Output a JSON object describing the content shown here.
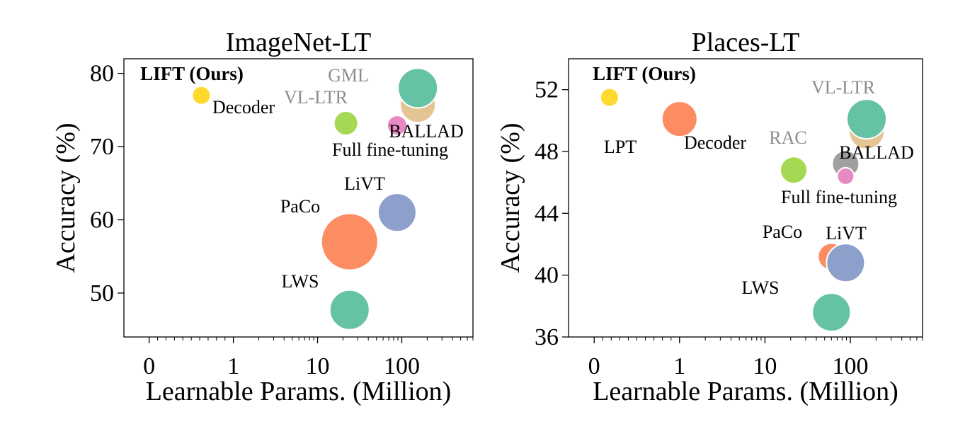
{
  "chart_data": [
    {
      "type": "scatter",
      "title": "ImageNet-LT",
      "xlabel": "Learnable Params. (Million)",
      "ylabel": "Accuracy (%)",
      "xscale": "symlog",
      "xlim": [
        -0.3,
        700
      ],
      "ylim": [
        44,
        82
      ],
      "xticks": [
        0,
        1,
        10,
        100
      ],
      "xtick_labels": [
        "0",
        "1",
        "10",
        "100"
      ],
      "yticks": [
        50,
        60,
        70,
        80
      ],
      "ytick_labels": [
        "50",
        "60",
        "70",
        "80"
      ],
      "grid": false,
      "points": [
        {
          "name": "LIFT (Ours)",
          "x": 0.62,
          "y": 77.0,
          "size": 13,
          "color": "#ffd92f",
          "label_color": "#000000",
          "bold": true
        },
        {
          "name": "Decoder",
          "x": 21.7,
          "y": 73.2,
          "size": 17,
          "color": "#a6d854",
          "label_color": "#000000",
          "bold": false
        },
        {
          "name": "GML",
          "x": 155,
          "y": 76.5,
          "size": 27,
          "color": "#a0a0a0",
          "label_color": "#8c8c8c",
          "bold": false
        },
        {
          "name": "VL-LTR",
          "x": 155,
          "y": 77.2,
          "size": 27,
          "color": "#e5c494",
          "label_color": "#8c8c8c",
          "bold": false
        },
        {
          "name": "BALLAD",
          "x": 155,
          "y": 75.7,
          "size": 25,
          "color": "#e5c494",
          "label_color": "#000000",
          "bold": false
        },
        {
          "name": "Full fine-tuning",
          "x": 88,
          "y": 72.9,
          "size": 14,
          "color": "#e78ac3",
          "label_color": "#000000",
          "bold": false
        },
        {
          "name": "LiVT",
          "x": 88,
          "y": 61.0,
          "size": 27,
          "color": "#8da0cb",
          "label_color": "#000000",
          "bold": false
        },
        {
          "name": "PaCo",
          "x": 24,
          "y": 57.0,
          "size": 40,
          "color": "#fc8d62",
          "label_color": "#000000",
          "bold": false
        },
        {
          "name": "LWS",
          "x": 24,
          "y": 47.7,
          "size": 28,
          "color": "#66c2a5",
          "label_color": "#000000",
          "bold": false
        },
        {
          "name": "",
          "x": 155,
          "y": 78.0,
          "size": 28,
          "color": "#66c2a5",
          "label_color": "#000000",
          "bold": false
        }
      ]
    },
    {
      "type": "scatter",
      "title": "Places-LT",
      "xlabel": "Learnable Params. (Million)",
      "ylabel": "Accuracy (%)",
      "xscale": "symlog",
      "xlim": [
        -0.3,
        700
      ],
      "ylim": [
        36,
        54
      ],
      "xticks": [
        0,
        1,
        10,
        100
      ],
      "xtick_labels": [
        "0",
        "1",
        "10",
        "100"
      ],
      "yticks": [
        36,
        40,
        44,
        48,
        52
      ],
      "ytick_labels": [
        "36",
        "40",
        "44",
        "48",
        "52"
      ],
      "grid": false,
      "points": [
        {
          "name": "LIFT (Ours)",
          "x": 0.18,
          "y": 51.5,
          "size": 13,
          "color": "#ffd92f",
          "label_color": "#000000",
          "bold": true
        },
        {
          "name": "LPT",
          "x": 1.0,
          "y": 50.1,
          "size": 25,
          "color": "#fc8d62",
          "label_color": "#000000",
          "bold": false
        },
        {
          "name": "Decoder",
          "x": 21.7,
          "y": 46.8,
          "size": 19,
          "color": "#a6d854",
          "label_color": "#000000",
          "bold": false
        },
        {
          "name": "VL-LTR",
          "x": 155,
          "y": 49.5,
          "size": 27,
          "color": "#e5c494",
          "label_color": "#8c8c8c",
          "bold": false
        },
        {
          "name": "RAC",
          "x": 88,
          "y": 47.2,
          "size": 19,
          "color": "#a0a0a0",
          "label_color": "#8c8c8c",
          "bold": false
        },
        {
          "name": "BALLAD",
          "x": 155,
          "y": 49.3,
          "size": 25,
          "color": "#e5c494",
          "label_color": "#000000",
          "bold": false
        },
        {
          "name": "Full fine-tuning",
          "x": 88,
          "y": 46.4,
          "size": 12,
          "color": "#e78ac3",
          "label_color": "#000000",
          "bold": false
        },
        {
          "name": "PaCo",
          "x": 60,
          "y": 41.2,
          "size": 19,
          "color": "#fc8d62",
          "label_color": "#000000",
          "bold": false
        },
        {
          "name": "LiVT",
          "x": 88,
          "y": 40.8,
          "size": 27,
          "color": "#8da0cb",
          "label_color": "#000000",
          "bold": false
        },
        {
          "name": "LWS",
          "x": 60,
          "y": 37.6,
          "size": 27,
          "color": "#66c2a5",
          "label_color": "#000000",
          "bold": false
        },
        {
          "name": "",
          "x": 155,
          "y": 50.1,
          "size": 28,
          "color": "#66c2a5",
          "label_color": "#000000",
          "bold": false
        }
      ]
    }
  ]
}
